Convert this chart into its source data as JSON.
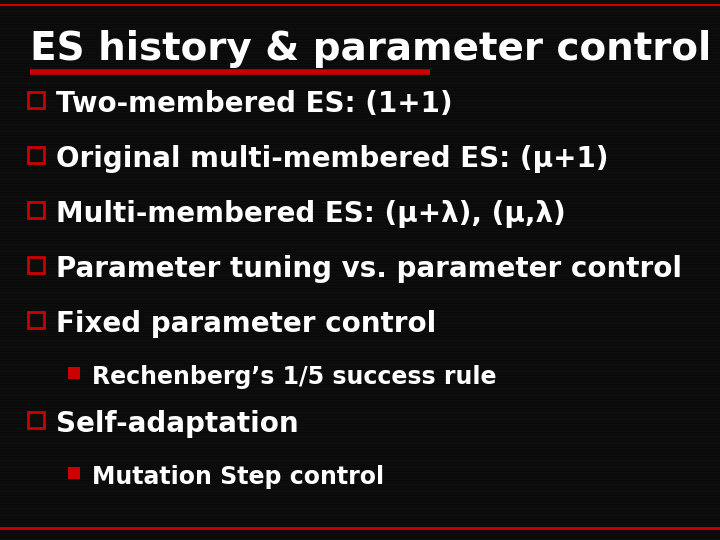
{
  "title": "ES history & parameter control",
  "title_fontsize": 28,
  "title_color": "#ffffff",
  "background_color": "#0d0d0d",
  "red_line_color": "#cc0000",
  "bullet_square_color": "#cc0000",
  "text_color": "#ffffff",
  "main_bullets": [
    "Two-membered ES: (1+1)",
    "Original multi-membered ES: (μ+1)",
    "Multi-membered ES: (μ+λ), (μ,λ)",
    "Parameter tuning vs. parameter control",
    "Fixed parameter control",
    "Self-adaptation"
  ],
  "sub_bullets": {
    "Fixed parameter control": [
      "Rechenberg’s 1/5 success rule"
    ],
    "Self-adaptation": [
      "Mutation Step control"
    ]
  },
  "main_bullet_fontsize": 20,
  "sub_bullet_fontsize": 17,
  "bottom_line_color": "#cc0000"
}
